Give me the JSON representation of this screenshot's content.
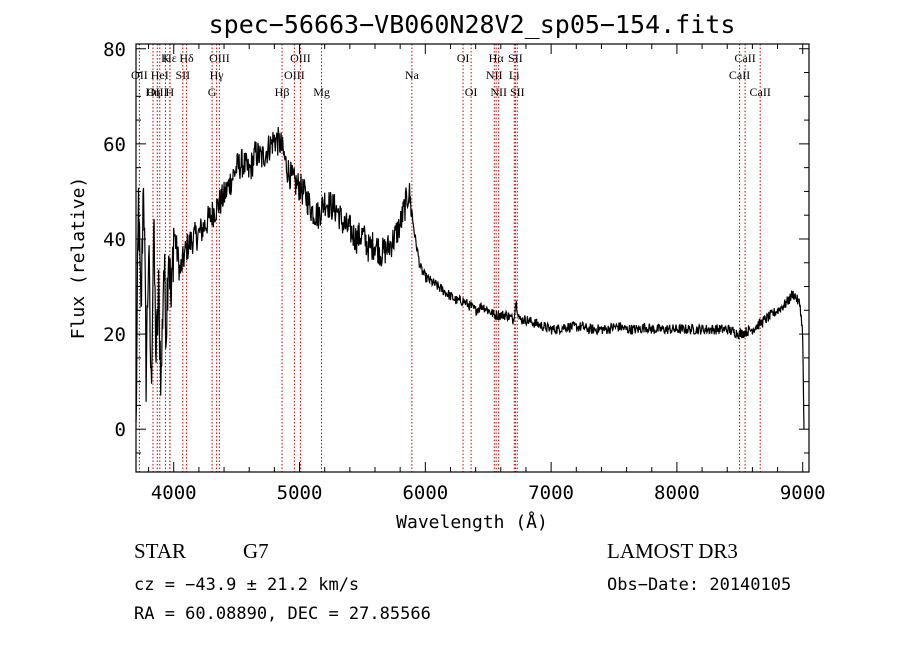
{
  "chart_data": {
    "type": "line",
    "title": "spec−56663−VB060N28V2_sp05−154.fits",
    "xlabel": "Wavelength (Å)",
    "ylabel": "Flux (relative)",
    "xlim": [
      3700,
      9050
    ],
    "ylim": [
      -9,
      81
    ],
    "x_ticks": [
      4000,
      5000,
      6000,
      7000,
      8000,
      9000
    ],
    "y_ticks": [
      0,
      20,
      40,
      60,
      80
    ],
    "x_tick_labels": [
      "4000",
      "5000",
      "6000",
      "7000",
      "8000",
      "9000"
    ],
    "y_tick_labels": [
      "0",
      "20",
      "40",
      "60",
      "80"
    ],
    "series": [
      {
        "name": "flux",
        "x": [
          3700,
          3720,
          3740,
          3760,
          3780,
          3800,
          3820,
          3840,
          3860,
          3880,
          3900,
          3920,
          3940,
          3960,
          3980,
          4000,
          4050,
          4100,
          4150,
          4200,
          4250,
          4300,
          4350,
          4400,
          4450,
          4500,
          4550,
          4600,
          4650,
          4700,
          4750,
          4800,
          4850,
          4900,
          4950,
          5000,
          5050,
          5100,
          5150,
          5200,
          5250,
          5300,
          5350,
          5400,
          5450,
          5500,
          5550,
          5600,
          5650,
          5700,
          5750,
          5800,
          5850,
          5870,
          5890,
          5900,
          5920,
          5940,
          5960,
          6000,
          6050,
          6100,
          6150,
          6200,
          6250,
          6300,
          6350,
          6400,
          6450,
          6500,
          6550,
          6600,
          6650,
          6700,
          6720,
          6750,
          6800,
          6850,
          6900,
          6950,
          7000,
          7050,
          7100,
          7150,
          7200,
          7250,
          7300,
          7350,
          7400,
          7450,
          7500,
          7550,
          7600,
          7650,
          7700,
          7750,
          7800,
          7850,
          7900,
          7950,
          8000,
          8050,
          8100,
          8150,
          8200,
          8250,
          8300,
          8350,
          8400,
          8450,
          8500,
          8550,
          8600,
          8650,
          8700,
          8750,
          8800,
          8850,
          8900,
          8920,
          8940,
          8960,
          8980,
          9000,
          9010
        ],
        "values": [
          -1,
          48,
          22,
          55,
          12,
          38,
          8,
          42,
          15,
          28,
          10,
          35,
          22,
          40,
          25,
          42,
          33,
          38,
          40,
          41,
          43,
          45,
          47,
          49,
          52,
          55,
          56,
          54,
          58,
          57,
          59,
          61,
          60,
          55,
          52,
          51,
          49,
          46,
          45,
          48,
          47,
          46,
          43,
          42,
          40,
          41,
          38,
          39,
          37,
          38,
          40,
          43,
          48,
          50,
          46,
          44,
          40,
          37,
          34,
          32,
          31,
          30,
          29,
          28,
          27,
          27,
          26,
          25,
          26,
          25,
          24,
          24,
          24,
          23,
          27,
          23,
          23,
          22.5,
          22,
          21.5,
          21,
          21,
          21.5,
          21.5,
          21.5,
          21.5,
          21,
          21,
          21,
          21,
          21.5,
          21.5,
          21,
          21,
          21,
          21.5,
          21,
          21,
          21,
          21,
          21,
          21,
          21,
          21,
          21,
          21,
          21,
          21,
          21,
          20.5,
          20,
          20.5,
          21,
          22,
          23,
          24,
          25,
          26,
          27.5,
          28.5,
          28,
          27,
          26,
          20,
          0
        ]
      }
    ],
    "line_markers": [
      {
        "label": "Hε",
        "wavelength": 3970,
        "row": 1
      },
      {
        "label": "K",
        "wavelength": 3934,
        "row": 1
      },
      {
        "label": "Hδ",
        "wavelength": 4102,
        "row": 1
      },
      {
        "label": "OII",
        "wavelength": 3727,
        "row": 2
      },
      {
        "label": "HeI",
        "wavelength": 3889,
        "row": 2
      },
      {
        "label": "SII",
        "wavelength": 4072,
        "row": 2
      },
      {
        "label": "OIII",
        "wavelength": 3869,
        "row": 3
      },
      {
        "label": "Hη",
        "wavelength": 3835,
        "row": 3
      },
      {
        "label": "H",
        "wavelength": 3969,
        "row": 3
      },
      {
        "label": "OIII",
        "wavelength": 4363,
        "row": 1
      },
      {
        "label": "Hγ",
        "wavelength": 4341,
        "row": 2
      },
      {
        "label": "G",
        "wavelength": 4305,
        "row": 3
      },
      {
        "label": "Hβ",
        "wavelength": 4861,
        "row": 3
      },
      {
        "label": "OIII",
        "wavelength": 5007,
        "row": 1
      },
      {
        "label": "OIII",
        "wavelength": 4959,
        "row": 2
      },
      {
        "label": "Mg",
        "wavelength": 5175,
        "row": 3
      },
      {
        "label": "Na",
        "wavelength": 5893,
        "row": 2
      },
      {
        "label": "OI",
        "wavelength": 6300,
        "row": 1
      },
      {
        "label": "OI",
        "wavelength": 6364,
        "row": 3
      },
      {
        "label": "Hα",
        "wavelength": 6563,
        "row": 1
      },
      {
        "label": "SII",
        "wavelength": 6716,
        "row": 1
      },
      {
        "label": "NII",
        "wavelength": 6548,
        "row": 2
      },
      {
        "label": "Li",
        "wavelength": 6707,
        "row": 2
      },
      {
        "label": "NII",
        "wavelength": 6583,
        "row": 3
      },
      {
        "label": "SII",
        "wavelength": 6731,
        "row": 3
      },
      {
        "label": "CaII",
        "wavelength": 8542,
        "row": 1
      },
      {
        "label": "CaII",
        "wavelength": 8498,
        "row": 2
      },
      {
        "label": "CaII",
        "wavelength": 8662,
        "row": 3
      }
    ],
    "colors": {
      "spectrum": "#000000",
      "marker": "#cc0000",
      "axes": "#000000"
    }
  },
  "info": {
    "object_class": "STAR",
    "subclass": "G7",
    "cz": "cz = −43.9 ± 21.2 km/s",
    "coords": "RA =  60.08890, DEC =  27.85566",
    "survey": "LAMOST DR3",
    "obs_date": "Obs−Date: 20140105"
  }
}
